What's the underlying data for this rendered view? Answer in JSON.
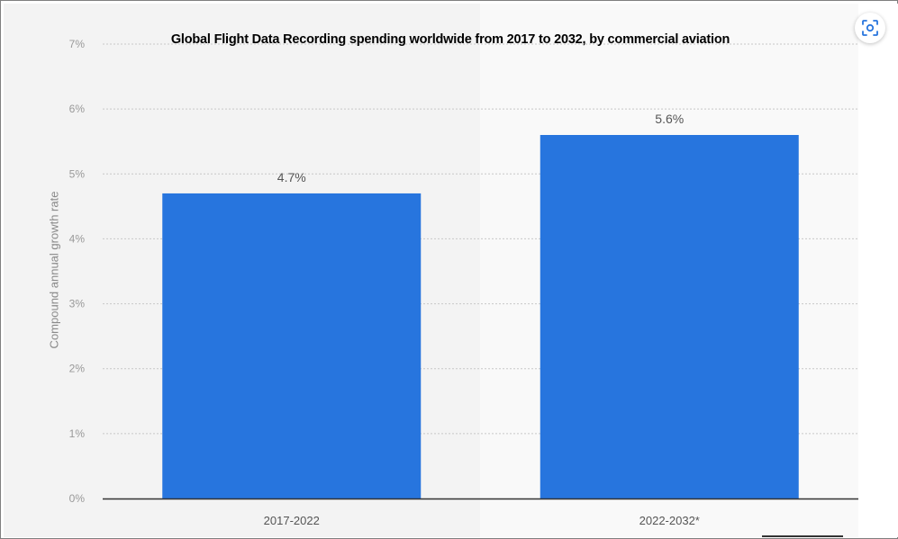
{
  "chart_data": {
    "type": "bar",
    "title": "Global Flight Data Recording spending worldwide from 2017 to 2032, by commercial aviation",
    "xlabel": "",
    "ylabel": "Compound annual growth rate",
    "categories": [
      "2017-2022",
      "2022-2032*"
    ],
    "values": [
      4.7,
      5.6
    ],
    "value_labels": [
      "4.7%",
      "5.6%"
    ],
    "ylim": [
      0,
      7
    ],
    "yticks": [
      "0%",
      "1%",
      "2%",
      "3%",
      "4%",
      "5%",
      "6%",
      "7%"
    ],
    "grid": true,
    "colors": {
      "bar": "#2775de",
      "grid": "#c8c8c8",
      "axis": "#333333",
      "tick_text": "#999999",
      "label_text": "#555555"
    }
  },
  "toolbar": {
    "zoom_icon": "fullscreen-scan-icon"
  }
}
